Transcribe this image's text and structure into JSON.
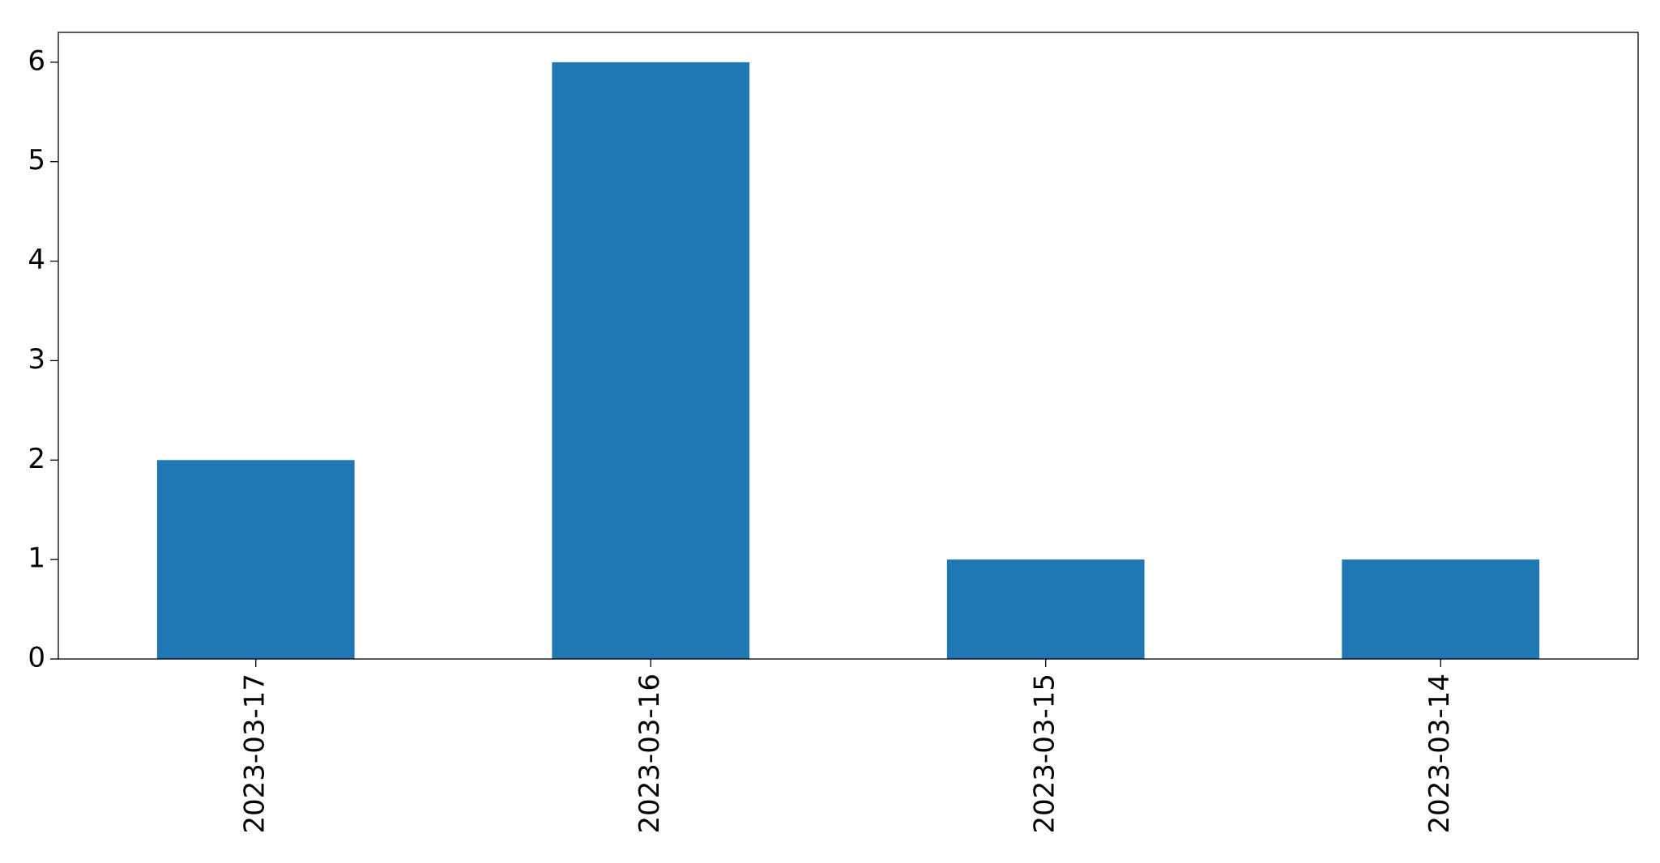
{
  "chart_data": {
    "type": "bar",
    "title": "",
    "xlabel": "",
    "ylabel": "",
    "categories": [
      "2023-03-17",
      "2023-03-16",
      "2023-03-15",
      "2023-03-14"
    ],
    "values": [
      2,
      6,
      1,
      1
    ],
    "ylim": [
      0,
      6.3
    ],
    "yticks": [
      0,
      1,
      2,
      3,
      4,
      5,
      6
    ],
    "ytick_labels": [
      "0",
      "1",
      "2",
      "3",
      "4",
      "5",
      "6"
    ],
    "grid": false,
    "legend": "none",
    "xtick_rotation": "vertical",
    "colors": {
      "bar": "#1f77b4",
      "axes": "#000000",
      "background": "#ffffff"
    }
  }
}
